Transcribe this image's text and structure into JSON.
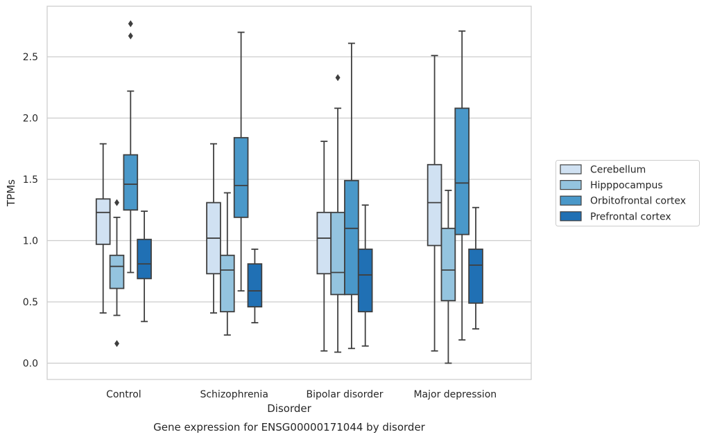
{
  "chart_data": {
    "type": "box",
    "caption": "Gene expression for ENSG00000171044 by disorder",
    "xlabel": "Disorder",
    "ylabel": "TPMs",
    "ylim": [
      -0.13,
      2.92
    ],
    "yticks": [
      0.0,
      0.5,
      1.0,
      1.5,
      2.0,
      2.5
    ],
    "ytick_labels": [
      "0.0",
      "0.5",
      "1.0",
      "1.5",
      "2.0",
      "2.5"
    ],
    "grid": "horizontal",
    "legend_position": "right",
    "categories": [
      "Control",
      "Schizophrenia",
      "Bipolar disorder",
      "Major depression"
    ],
    "series": [
      {
        "name": "Cerebellum",
        "color": "#d0e1f2",
        "boxes": [
          {
            "whisker_low": 0.41,
            "q1": 0.97,
            "median": 1.23,
            "q3": 1.34,
            "whisker_high": 1.79,
            "outliers": []
          },
          {
            "whisker_low": 0.41,
            "q1": 0.73,
            "median": 1.02,
            "q3": 1.31,
            "whisker_high": 1.79,
            "outliers": []
          },
          {
            "whisker_low": 0.1,
            "q1": 0.73,
            "median": 1.02,
            "q3": 1.23,
            "whisker_high": 1.81,
            "outliers": []
          },
          {
            "whisker_low": 0.1,
            "q1": 0.96,
            "median": 1.31,
            "q3": 1.62,
            "whisker_high": 2.51,
            "outliers": []
          }
        ]
      },
      {
        "name": "Hipppocampus",
        "color": "#94c4df",
        "boxes": [
          {
            "whisker_low": 0.39,
            "q1": 0.61,
            "median": 0.79,
            "q3": 0.88,
            "whisker_high": 1.19,
            "outliers": [
              0.16,
              1.31
            ]
          },
          {
            "whisker_low": 0.23,
            "q1": 0.42,
            "median": 0.76,
            "q3": 0.88,
            "whisker_high": 1.39,
            "outliers": []
          },
          {
            "whisker_low": 0.09,
            "q1": 0.56,
            "median": 0.74,
            "q3": 1.23,
            "whisker_high": 2.08,
            "outliers": [
              2.33
            ]
          },
          {
            "whisker_low": 0.0,
            "q1": 0.51,
            "median": 0.76,
            "q3": 1.1,
            "whisker_high": 1.41,
            "outliers": []
          }
        ]
      },
      {
        "name": "Orbitofrontal cortex",
        "color": "#4a98c9",
        "boxes": [
          {
            "whisker_low": 0.74,
            "q1": 1.25,
            "median": 1.46,
            "q3": 1.7,
            "whisker_high": 2.22,
            "outliers": [
              2.67,
              2.77
            ]
          },
          {
            "whisker_low": 0.59,
            "q1": 1.19,
            "median": 1.45,
            "q3": 1.84,
            "whisker_high": 2.7,
            "outliers": []
          },
          {
            "whisker_low": 0.12,
            "q1": 0.56,
            "median": 1.1,
            "q3": 1.49,
            "whisker_high": 2.61,
            "outliers": []
          },
          {
            "whisker_low": 0.19,
            "q1": 1.05,
            "median": 1.47,
            "q3": 2.08,
            "whisker_high": 2.71,
            "outliers": []
          }
        ]
      },
      {
        "name": "Prefrontal cortex",
        "color": "#2070b4",
        "boxes": [
          {
            "whisker_low": 0.34,
            "q1": 0.69,
            "median": 0.81,
            "q3": 1.01,
            "whisker_high": 1.24,
            "outliers": []
          },
          {
            "whisker_low": 0.33,
            "q1": 0.46,
            "median": 0.59,
            "q3": 0.81,
            "whisker_high": 0.93,
            "outliers": []
          },
          {
            "whisker_low": 0.14,
            "q1": 0.42,
            "median": 0.72,
            "q3": 0.93,
            "whisker_high": 1.29,
            "outliers": []
          },
          {
            "whisker_low": 0.28,
            "q1": 0.49,
            "median": 0.8,
            "q3": 0.93,
            "whisker_high": 1.27,
            "outliers": []
          }
        ]
      }
    ]
  }
}
